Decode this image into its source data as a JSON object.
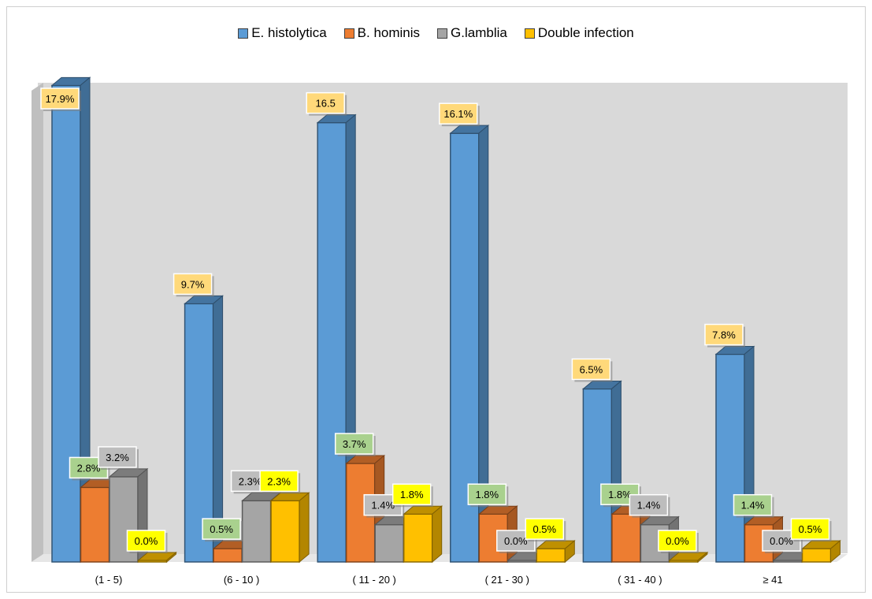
{
  "chart_data": {
    "type": "bar",
    "style": "3d-clustered-column",
    "categories": [
      "(1 - 5)",
      "(6 - 10 )",
      "( 11 - 20 )",
      "( 21 - 30 )",
      "( 31 - 40 )",
      "≥ 41"
    ],
    "series": [
      {
        "name": "E. histolytica",
        "color": "#5b9bd5",
        "values": [
          17.9,
          9.7,
          16.5,
          16.1,
          6.5,
          7.8
        ],
        "labels": [
          "17.9%",
          "9.7%",
          "16.5",
          "16.1%",
          "6.5%",
          "7.8%"
        ]
      },
      {
        "name": "B. hominis",
        "color": "#ed7d31",
        "values": [
          2.8,
          0.5,
          3.7,
          1.8,
          1.8,
          1.4
        ],
        "labels": [
          "2.8%",
          "0.5%",
          "3.7%",
          "1.8%",
          "1.8%",
          "1.4%"
        ]
      },
      {
        "name": "G.lamblia",
        "color": "#a5a5a5",
        "values": [
          3.2,
          2.3,
          1.4,
          0.0,
          1.4,
          0.0
        ],
        "labels": [
          "3.2%",
          "2.3%",
          "1.4%",
          "0.0%",
          "1.4%",
          "0.0%"
        ]
      },
      {
        "name": "Double infection",
        "color": "#ffc000",
        "values": [
          0.0,
          2.3,
          1.8,
          0.5,
          0.0,
          0.5
        ],
        "labels": [
          "0.0%",
          "2.3%",
          "1.8%",
          "0.5%",
          "0.0%",
          "0.5%"
        ]
      }
    ],
    "ylim": [
      0,
      18
    ],
    "legend": "top-center",
    "grid": false
  }
}
